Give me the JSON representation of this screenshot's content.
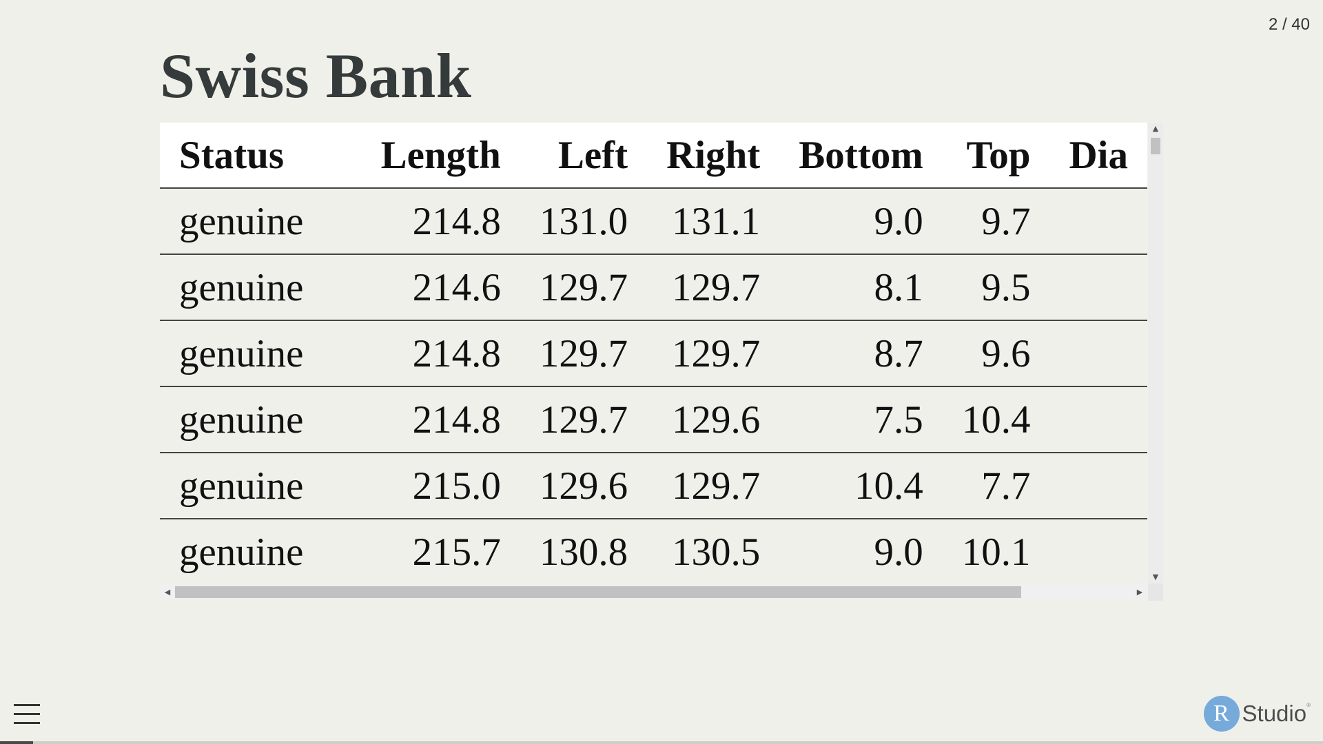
{
  "slide": {
    "counter": "2 / 40",
    "current": 2,
    "total": 40,
    "title": "Swiss Bank",
    "progress_fraction": 0.025
  },
  "table": {
    "columns": [
      "Status",
      "Length",
      "Left",
      "Right",
      "Bottom",
      "Top",
      "Dia"
    ],
    "rows": [
      [
        "genuine",
        "214.8",
        "131.0",
        "131.1",
        "9.0",
        "9.7",
        ""
      ],
      [
        "genuine",
        "214.6",
        "129.7",
        "129.7",
        "8.1",
        "9.5",
        ""
      ],
      [
        "genuine",
        "214.8",
        "129.7",
        "129.7",
        "8.7",
        "9.6",
        ""
      ],
      [
        "genuine",
        "214.8",
        "129.7",
        "129.6",
        "7.5",
        "10.4",
        ""
      ],
      [
        "genuine",
        "215.0",
        "129.6",
        "129.7",
        "10.4",
        "7.7",
        ""
      ],
      [
        "genuine",
        "215.7",
        "130.8",
        "130.5",
        "9.0",
        "10.1",
        ""
      ]
    ]
  },
  "scrollbars": {
    "up_arrow": "▲",
    "down_arrow": "▼",
    "left_arrow": "◀",
    "right_arrow": "▶"
  },
  "footer": {
    "menu_icon": "hamburger-menu-icon",
    "brand_letter": "R",
    "brand_name": "Studio",
    "brand_mark": "®",
    "brand_color": "#75aadb"
  },
  "colors": {
    "background": "#f0f0eb",
    "title": "#353b3b",
    "header_background": "#ffffff"
  }
}
